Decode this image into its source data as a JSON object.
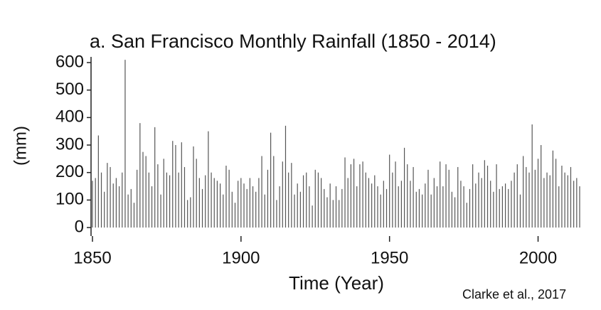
{
  "chart_data": {
    "type": "spike",
    "title": "a. San Francisco Monthly Rainfall (1850 - 2014)",
    "y_label": "(mm)",
    "x_label": "Time (Year)",
    "credit": "Clarke et al., 2017",
    "color": "#555555",
    "xlim": [
      1850,
      2014
    ],
    "xticks": [
      1850,
      1900,
      1950,
      2000
    ],
    "ylim": [
      0,
      600
    ],
    "yticks": [
      0,
      100,
      200,
      300,
      400,
      500,
      600
    ],
    "x": [
      1850,
      1851,
      1852,
      1853,
      1854,
      1855,
      1856,
      1857,
      1858,
      1859,
      1860,
      1861,
      1862,
      1863,
      1864,
      1865,
      1866,
      1867,
      1868,
      1869,
      1870,
      1871,
      1872,
      1873,
      1874,
      1875,
      1876,
      1877,
      1878,
      1879,
      1880,
      1881,
      1882,
      1883,
      1884,
      1885,
      1886,
      1887,
      1888,
      1889,
      1890,
      1891,
      1892,
      1893,
      1894,
      1895,
      1896,
      1897,
      1898,
      1899,
      1900,
      1901,
      1902,
      1903,
      1904,
      1905,
      1906,
      1907,
      1908,
      1909,
      1910,
      1911,
      1912,
      1913,
      1914,
      1915,
      1916,
      1917,
      1918,
      1919,
      1920,
      1921,
      1922,
      1923,
      1924,
      1925,
      1926,
      1927,
      1928,
      1929,
      1930,
      1931,
      1932,
      1933,
      1934,
      1935,
      1936,
      1937,
      1938,
      1939,
      1940,
      1941,
      1942,
      1943,
      1944,
      1945,
      1946,
      1947,
      1948,
      1949,
      1950,
      1951,
      1952,
      1953,
      1954,
      1955,
      1956,
      1957,
      1958,
      1959,
      1960,
      1961,
      1962,
      1963,
      1964,
      1965,
      1966,
      1967,
      1968,
      1969,
      1970,
      1971,
      1972,
      1973,
      1974,
      1975,
      1976,
      1977,
      1978,
      1979,
      1980,
      1981,
      1982,
      1983,
      1984,
      1985,
      1986,
      1987,
      1988,
      1989,
      1990,
      1991,
      1992,
      1993,
      1994,
      1995,
      1996,
      1997,
      1998,
      1999,
      2000,
      2001,
      2002,
      2003,
      2004,
      2005,
      2006,
      2007,
      2008,
      2009,
      2010,
      2011,
      2012,
      2013,
      2014
    ],
    "values": [
      170,
      180,
      335,
      200,
      130,
      235,
      220,
      160,
      180,
      150,
      200,
      610,
      120,
      140,
      90,
      210,
      380,
      275,
      260,
      200,
      150,
      365,
      230,
      120,
      250,
      200,
      190,
      315,
      300,
      200,
      310,
      220,
      100,
      110,
      295,
      250,
      180,
      140,
      190,
      350,
      200,
      180,
      170,
      160,
      120,
      225,
      210,
      130,
      90,
      170,
      180,
      160,
      140,
      180,
      150,
      130,
      180,
      260,
      120,
      210,
      345,
      260,
      100,
      150,
      240,
      370,
      200,
      235,
      120,
      160,
      130,
      190,
      200,
      150,
      80,
      210,
      200,
      180,
      140,
      110,
      160,
      100,
      150,
      100,
      140,
      255,
      180,
      230,
      250,
      150,
      230,
      240,
      200,
      180,
      160,
      190,
      150,
      120,
      170,
      140,
      265,
      200,
      240,
      150,
      170,
      290,
      230,
      170,
      220,
      130,
      140,
      120,
      160,
      210,
      120,
      180,
      150,
      240,
      150,
      230,
      210,
      130,
      110,
      220,
      170,
      150,
      90,
      140,
      230,
      160,
      200,
      180,
      245,
      225,
      170,
      130,
      230,
      140,
      150,
      160,
      140,
      170,
      200,
      230,
      120,
      260,
      220,
      200,
      375,
      210,
      250,
      300,
      180,
      200,
      190,
      280,
      250,
      150,
      225,
      200,
      190,
      220,
      170,
      180,
      150
    ]
  }
}
